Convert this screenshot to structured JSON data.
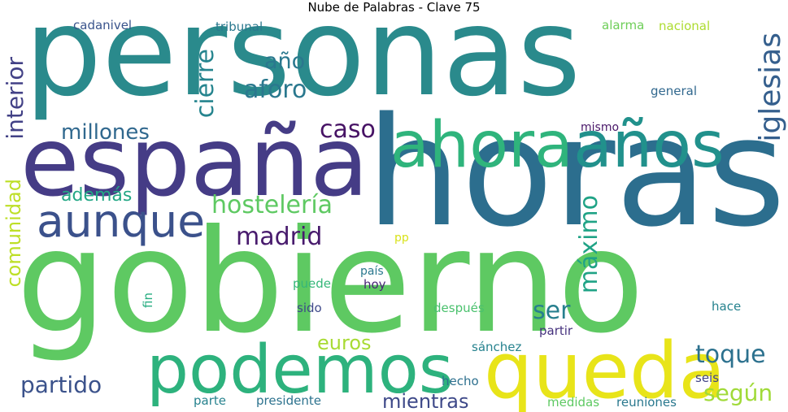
{
  "title": "Nube de Palabras - Clave 75",
  "words": [
    {
      "text": "personas",
      "color": "#2a8a8c"
    },
    {
      "text": "horas",
      "color": "#2c6e8e"
    },
    {
      "text": "gobierno",
      "color": "#5ec962"
    },
    {
      "text": "españa",
      "color": "#453c86"
    },
    {
      "text": "ahora",
      "color": "#2fb47c"
    },
    {
      "text": "años",
      "color": "#21918c"
    },
    {
      "text": "aunque",
      "color": "#3b518b"
    },
    {
      "text": "podemos",
      "color": "#2db27d"
    },
    {
      "text": "queda",
      "color": "#e8e419"
    },
    {
      "text": "iglesias",
      "color": "#355f8d"
    },
    {
      "text": "interior",
      "color": "#424186"
    },
    {
      "text": "cierre",
      "color": "#25848e"
    },
    {
      "text": "año",
      "color": "#2a788e"
    },
    {
      "text": "aforo",
      "color": "#2a788e"
    },
    {
      "text": "caso",
      "color": "#471365"
    },
    {
      "text": "millones",
      "color": "#30688e"
    },
    {
      "text": "hostelería",
      "color": "#5ec962"
    },
    {
      "text": "además",
      "color": "#22a785"
    },
    {
      "text": "madrid",
      "color": "#481b6d"
    },
    {
      "text": "comunidad",
      "color": "#bddf26"
    },
    {
      "text": "máximo",
      "color": "#20a386"
    },
    {
      "text": "ser",
      "color": "#277f8e"
    },
    {
      "text": "toque",
      "color": "#2c718e"
    },
    {
      "text": "euros",
      "color": "#a8db34"
    },
    {
      "text": "según",
      "color": "#a0da39"
    },
    {
      "text": "partido",
      "color": "#3b528b"
    },
    {
      "text": "mientras",
      "color": "#3e4989"
    },
    {
      "text": "cadanivel",
      "color": "#3a548c"
    },
    {
      "text": "tribunal",
      "color": "#2a788e"
    },
    {
      "text": "alarma",
      "color": "#6ece58"
    },
    {
      "text": "nacional",
      "color": "#addc30"
    },
    {
      "text": "general",
      "color": "#31688e"
    },
    {
      "text": "mismo",
      "color": "#481668"
    },
    {
      "text": "pp",
      "color": "#d8e219"
    },
    {
      "text": "país",
      "color": "#2a788e"
    },
    {
      "text": "puede",
      "color": "#35b779"
    },
    {
      "text": "hoy",
      "color": "#482576"
    },
    {
      "text": "fin",
      "color": "#27ad81"
    },
    {
      "text": "sido",
      "color": "#3e4989"
    },
    {
      "text": "después",
      "color": "#4ac16d"
    },
    {
      "text": "hace",
      "color": "#26828e"
    },
    {
      "text": "partir",
      "color": "#46327e"
    },
    {
      "text": "sánchez",
      "color": "#26828e"
    },
    {
      "text": "hecho",
      "color": "#2d708e"
    },
    {
      "text": "seis",
      "color": "#414487"
    },
    {
      "text": "parte",
      "color": "#26828e"
    },
    {
      "text": "presidente",
      "color": "#2c728e"
    },
    {
      "text": "medidas",
      "color": "#5ec962"
    },
    {
      "text": "reuniones",
      "color": "#2a788e"
    }
  ]
}
